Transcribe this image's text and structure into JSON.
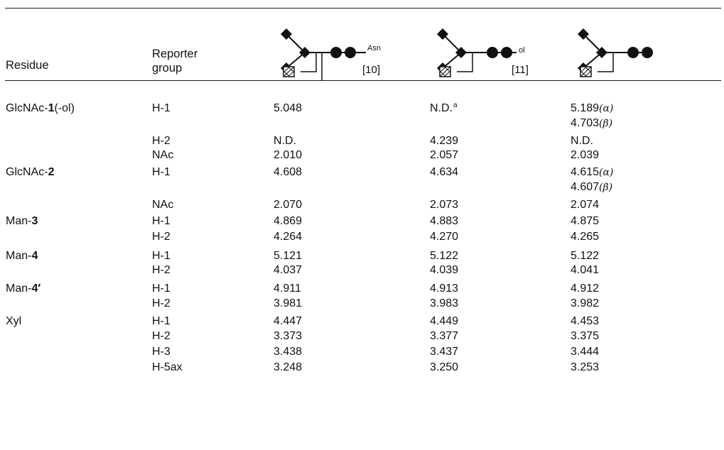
{
  "header": {
    "residue": "Residue",
    "reporter_line1": "Reporter",
    "reporter_line2": "group",
    "structures": [
      {
        "label": "Asn",
        "ref": "[10]"
      },
      {
        "label": "ol",
        "ref": "[11]"
      },
      {
        "label": "",
        "ref": ""
      }
    ]
  },
  "rows": [
    {
      "residue": "GlcNAc-",
      "residue_bold": "1",
      "residue_suffix": "(-ol)",
      "reporter": "H-1",
      "c1": "5.048",
      "c2": "N.D.",
      "c2_sup": "a",
      "c3": "5.189",
      "c3_greek": "(α)"
    },
    {
      "residue": "",
      "residue_bold": "",
      "residue_suffix": "",
      "reporter": "",
      "c1": "",
      "c2": "",
      "c2_sup": "",
      "c3": "4.703",
      "c3_greek": "(β)"
    },
    {
      "residue": "",
      "residue_bold": "",
      "residue_suffix": "",
      "reporter": "H-2",
      "c1": "N.D.",
      "c2": "4.239",
      "c2_sup": "",
      "c3": "N.D.",
      "c3_greek": ""
    },
    {
      "residue": "",
      "residue_bold": "",
      "residue_suffix": "",
      "reporter": "NAc",
      "c1": "2.010",
      "c2": "2.057",
      "c2_sup": "",
      "c3": "2.039",
      "c3_greek": ""
    },
    {
      "residue": "GlcNAc-",
      "residue_bold": "2",
      "residue_suffix": "",
      "reporter": "H-1",
      "c1": "4.608",
      "c2": "4.634",
      "c2_sup": "",
      "c3": "4.615",
      "c3_greek": "(α)"
    },
    {
      "residue": "",
      "residue_bold": "",
      "residue_suffix": "",
      "reporter": "",
      "c1": "",
      "c2": "",
      "c2_sup": "",
      "c3": "4.607",
      "c3_greek": "(β)"
    },
    {
      "residue": "",
      "residue_bold": "",
      "residue_suffix": "",
      "reporter": "NAc",
      "c1": "2.070",
      "c2": "2.073",
      "c2_sup": "",
      "c3": "2.074",
      "c3_greek": ""
    },
    {
      "residue": "Man-",
      "residue_bold": "3",
      "residue_suffix": "",
      "reporter": "H-1",
      "c1": "4.869",
      "c2": "4.883",
      "c2_sup": "",
      "c3": "4.875",
      "c3_greek": ""
    },
    {
      "residue": "",
      "residue_bold": "",
      "residue_suffix": "",
      "reporter": "H-2",
      "c1": "4.264",
      "c2": "4.270",
      "c2_sup": "",
      "c3": "4.265",
      "c3_greek": ""
    },
    {
      "residue": "Man-",
      "residue_bold": "4",
      "residue_suffix": "",
      "reporter": "H-1",
      "c1": "5.121",
      "c2": "5.122",
      "c2_sup": "",
      "c3": "5.122",
      "c3_greek": ""
    },
    {
      "residue": "",
      "residue_bold": "",
      "residue_suffix": "",
      "reporter": "H-2",
      "c1": "4.037",
      "c2": "4.039",
      "c2_sup": "",
      "c3": "4.041",
      "c3_greek": ""
    },
    {
      "residue": "Man-",
      "residue_bold": "4′",
      "residue_suffix": "",
      "reporter": "H-1",
      "c1": "4.911",
      "c2": "4.913",
      "c2_sup": "",
      "c3": "4.912",
      "c3_greek": ""
    },
    {
      "residue": "",
      "residue_bold": "",
      "residue_suffix": "",
      "reporter": "H-2",
      "c1": "3.981",
      "c2": "3.983",
      "c2_sup": "",
      "c3": "3.982",
      "c3_greek": ""
    },
    {
      "residue": "Xyl",
      "residue_bold": "",
      "residue_suffix": "",
      "reporter": "H-1",
      "c1": "4.447",
      "c2": "4.449",
      "c2_sup": "",
      "c3": "4.453",
      "c3_greek": ""
    },
    {
      "residue": "",
      "residue_bold": "",
      "residue_suffix": "",
      "reporter": "H-2",
      "c1": "3.373",
      "c2": "3.377",
      "c2_sup": "",
      "c3": "3.375",
      "c3_greek": ""
    },
    {
      "residue": "",
      "residue_bold": "",
      "residue_suffix": "",
      "reporter": "H-3",
      "c1": "3.438",
      "c2": "3.437",
      "c2_sup": "",
      "c3": "3.444",
      "c3_greek": ""
    },
    {
      "residue": "",
      "residue_bold": "",
      "residue_suffix": "",
      "reporter": "H-5ax",
      "c1": "3.248",
      "c2": "3.250",
      "c2_sup": "",
      "c3": "3.253",
      "c3_greek": ""
    }
  ]
}
